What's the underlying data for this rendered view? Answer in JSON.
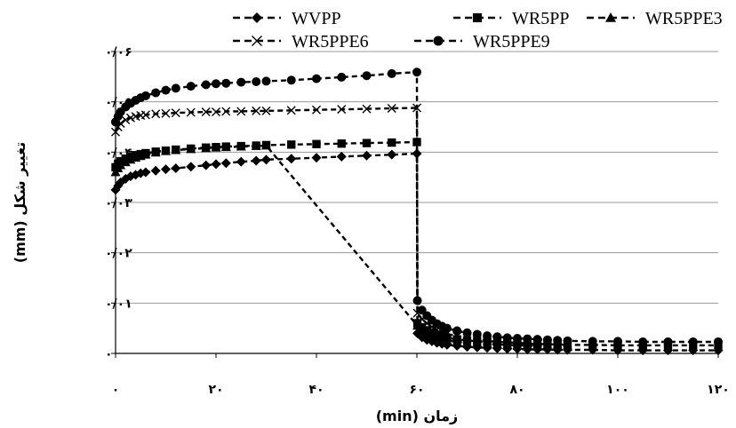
{
  "chart_data": {
    "type": "line",
    "xlabel": "زمان (min)",
    "ylabel": "تغییر شکل (mm)",
    "xlim": [
      0,
      120
    ],
    "ylim": [
      0,
      0.06
    ],
    "x_ticks": [
      {
        "value": 0,
        "label": "۰"
      },
      {
        "value": 20,
        "label": "۲۰"
      },
      {
        "value": 40,
        "label": "۴۰"
      },
      {
        "value": 60,
        "label": "۶۰"
      },
      {
        "value": 80,
        "label": "۸۰"
      },
      {
        "value": 100,
        "label": "۱۰۰"
      },
      {
        "value": 120,
        "label": "۱۲۰"
      }
    ],
    "y_ticks": [
      {
        "value": 0,
        "label": "۰"
      },
      {
        "value": 0.01,
        "label": "۰/۰۱"
      },
      {
        "value": 0.02,
        "label": "۰/۰۲"
      },
      {
        "value": 0.03,
        "label": "۰/۰۳"
      },
      {
        "value": 0.04,
        "label": "۰/۰۴"
      },
      {
        "value": 0.05,
        "label": "۰/۰۵"
      },
      {
        "value": 0.06,
        "label": "۰/۰۶"
      }
    ],
    "grid": "horizontal",
    "legend_position": "top",
    "series": [
      {
        "name": "WVPP",
        "marker": "diamond",
        "line_style": "dashed",
        "color": "#000000",
        "x": [
          0,
          0.5,
          1,
          2,
          3,
          4,
          5,
          6,
          8,
          10,
          12,
          15,
          18,
          20,
          22,
          25,
          28,
          30,
          35,
          40,
          45,
          50,
          55,
          60,
          60.1,
          61,
          62,
          63,
          64,
          65,
          66,
          68,
          70,
          72,
          74,
          76,
          78,
          80,
          82,
          84,
          86,
          88,
          90,
          95,
          100,
          105,
          110,
          115,
          120
        ],
        "y": [
          0.0325,
          0.0333,
          0.034,
          0.0347,
          0.0352,
          0.0355,
          0.0358,
          0.036,
          0.0363,
          0.0366,
          0.0368,
          0.0371,
          0.0374,
          0.0376,
          0.0378,
          0.0381,
          0.0383,
          0.0385,
          0.0387,
          0.0389,
          0.0391,
          0.0393,
          0.0395,
          0.0397,
          0.004,
          0.0032,
          0.0027,
          0.0024,
          0.0021,
          0.0019,
          0.0017,
          0.0015,
          0.0013,
          0.0012,
          0.0011,
          0.001,
          0.0009,
          0.0009,
          0.0008,
          0.0008,
          0.0008,
          0.0007,
          0.0007,
          0.0007,
          0.0006,
          0.0006,
          0.0006,
          0.0006,
          0.0006
        ]
      },
      {
        "name": "WR5PP",
        "marker": "square",
        "line_style": "dashed",
        "color": "#000000",
        "x": [
          0,
          0.5,
          1,
          2,
          3,
          4,
          5,
          6,
          8,
          10,
          12,
          15,
          18,
          20,
          22,
          25,
          28,
          30,
          35,
          40,
          45,
          50,
          55,
          60,
          60.1,
          61,
          62,
          63,
          64,
          65,
          66,
          68,
          70,
          72,
          74,
          76,
          78,
          80,
          82,
          84,
          86,
          88,
          90,
          95,
          100,
          105,
          110,
          115,
          120
        ],
        "y": [
          0.037,
          0.0377,
          0.0382,
          0.0387,
          0.0391,
          0.0394,
          0.0396,
          0.0398,
          0.0401,
          0.0403,
          0.0405,
          0.0407,
          0.0409,
          0.041,
          0.0411,
          0.0412,
          0.0413,
          0.0414,
          0.0415,
          0.0416,
          0.0417,
          0.0418,
          0.0419,
          0.042,
          0.006,
          0.0052,
          0.0046,
          0.0041,
          0.0037,
          0.0034,
          0.0031,
          0.0028,
          0.0026,
          0.0024,
          0.0023,
          0.0022,
          0.0021,
          0.002,
          0.0019,
          0.0019,
          0.0018,
          0.0018,
          0.0017,
          0.0017,
          0.0016,
          0.0016,
          0.0016,
          0.0016,
          0.0016
        ]
      },
      {
        "name": "WR5PPE3",
        "marker": "triangle",
        "line_style": "dashed",
        "color": "#000000",
        "x": [
          0,
          0.5,
          1,
          2,
          3,
          4,
          5,
          6,
          8,
          10,
          12,
          15,
          18,
          20,
          22,
          25,
          28,
          30,
          60.1,
          61,
          62,
          63,
          64,
          65,
          66,
          68,
          70,
          72,
          74,
          76,
          78,
          80,
          82,
          84,
          86,
          88,
          90
        ],
        "y": [
          0.036,
          0.0368,
          0.0374,
          0.038,
          0.0385,
          0.0389,
          0.0392,
          0.0395,
          0.0399,
          0.0402,
          0.0404,
          0.0406,
          0.0408,
          0.0409,
          0.041,
          0.0411,
          0.0412,
          0.0413,
          0.0055,
          0.0047,
          0.0041,
          0.0036,
          0.0032,
          0.0029,
          0.0026,
          0.0023,
          0.0021,
          0.002,
          0.0019,
          0.0018,
          0.0017,
          0.0016,
          0.0016,
          0.0015,
          0.0015,
          0.0015,
          0.0014
        ]
      },
      {
        "name": "WR5PPE6",
        "marker": "x",
        "line_style": "dashed",
        "color": "#000000",
        "x": [
          0,
          0.5,
          1,
          2,
          3,
          4,
          5,
          6,
          8,
          10,
          12,
          15,
          18,
          20,
          22,
          25,
          28,
          30,
          35,
          40,
          45,
          50,
          55,
          60,
          60.1,
          61,
          62,
          63,
          64,
          65,
          66,
          68,
          70,
          72,
          74,
          76,
          78,
          80,
          82,
          84,
          86,
          88,
          90
        ],
        "y": [
          0.044,
          0.045,
          0.0457,
          0.0464,
          0.0468,
          0.0471,
          0.0473,
          0.0474,
          0.0476,
          0.0477,
          0.0478,
          0.0479,
          0.048,
          0.048,
          0.0481,
          0.0481,
          0.0482,
          0.0482,
          0.0483,
          0.0484,
          0.0485,
          0.0486,
          0.0487,
          0.0488,
          0.008,
          0.0068,
          0.006,
          0.0053,
          0.0047,
          0.0043,
          0.0039,
          0.0034,
          0.003,
          0.0027,
          0.0025,
          0.0023,
          0.0022,
          0.0021,
          0.002,
          0.0019,
          0.0018,
          0.0018,
          0.0017
        ]
      },
      {
        "name": "WR5PPE9",
        "marker": "circle",
        "line_style": "dashed",
        "color": "#000000",
        "x": [
          0,
          0.5,
          1,
          2,
          3,
          4,
          5,
          6,
          8,
          10,
          12,
          15,
          18,
          20,
          22,
          25,
          28,
          30,
          35,
          40,
          45,
          50,
          55,
          60,
          60.1,
          61,
          62,
          63,
          64,
          65,
          66,
          68,
          70,
          72,
          74,
          76,
          78,
          80,
          82,
          84,
          86,
          88,
          90,
          95,
          100,
          105,
          110,
          115,
          120
        ],
        "y": [
          0.046,
          0.0471,
          0.048,
          0.049,
          0.0497,
          0.0503,
          0.0508,
          0.0512,
          0.0518,
          0.0523,
          0.0527,
          0.0531,
          0.0534,
          0.0536,
          0.0537,
          0.0539,
          0.054,
          0.0541,
          0.0543,
          0.0546,
          0.0549,
          0.0552,
          0.0556,
          0.0559,
          0.0105,
          0.0086,
          0.0075,
          0.0066,
          0.0059,
          0.0054,
          0.005,
          0.0045,
          0.0041,
          0.0038,
          0.0035,
          0.0033,
          0.0031,
          0.003,
          0.0029,
          0.0028,
          0.0027,
          0.0026,
          0.0025,
          0.0024,
          0.0024,
          0.0023,
          0.0023,
          0.0023,
          0.0023
        ]
      }
    ]
  }
}
